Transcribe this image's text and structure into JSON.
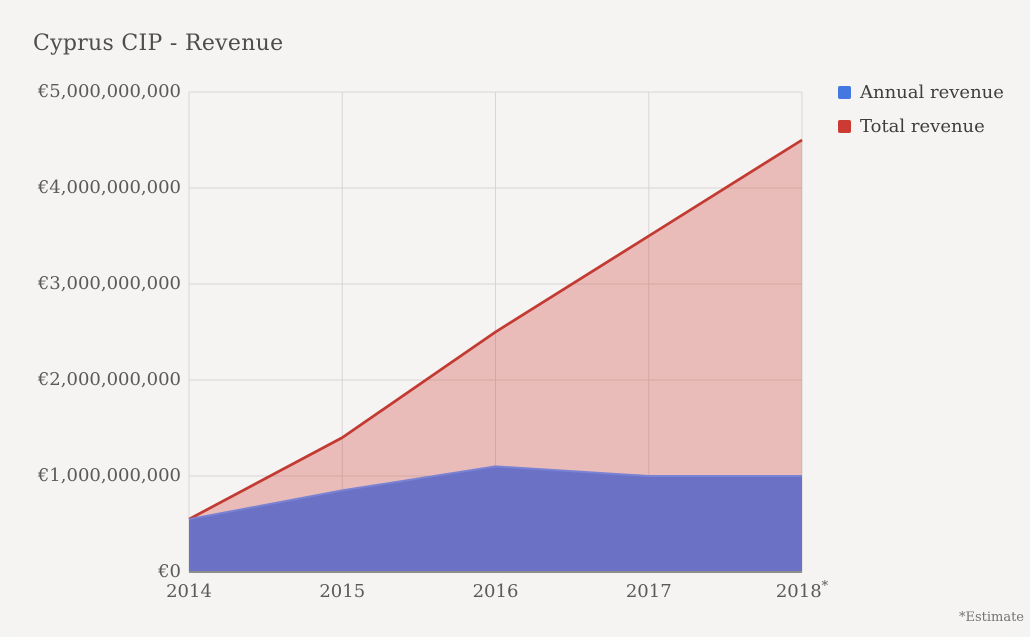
{
  "page": {
    "title": "Cyprus CIP - Revenue",
    "footnote": "*Estimate"
  },
  "legend": {
    "items": [
      {
        "label": "Annual revenue",
        "color": "#4577e0"
      },
      {
        "label": "Total revenue",
        "color": "#cc3b33"
      }
    ]
  },
  "chart_data": {
    "type": "area",
    "title": "Cyprus CIP - Revenue",
    "categories": [
      "2014",
      "2015",
      "2016",
      "2017",
      "2018*"
    ],
    "series": [
      {
        "name": "Annual revenue",
        "values": [
          550000000,
          850000000,
          1100000000,
          1000000000,
          1000000000
        ],
        "fill_color": "#6b71c4",
        "fill_opacity": 1,
        "line_color": "#7a82d4",
        "line_width": 2
      },
      {
        "name": "Total revenue",
        "values": [
          550000000,
          1400000000,
          2500000000,
          3500000000,
          4500000000
        ],
        "fill_color": "#cd3d35",
        "fill_opacity": 0.3,
        "line_color": "#c23a31",
        "line_width": 2.75
      }
    ],
    "ylim": [
      0,
      5000000000
    ],
    "y_ticks": [
      {
        "value": 0,
        "label": "€0"
      },
      {
        "value": 1000000000,
        "label": "€1,000,000,000"
      },
      {
        "value": 2000000000,
        "label": "€2,000,000,000"
      },
      {
        "value": 3000000000,
        "label": "€3,000,000,000"
      },
      {
        "value": 4000000000,
        "label": "€4,000,000,000"
      },
      {
        "value": 5000000000,
        "label": "€5,000,000,000"
      }
    ],
    "grid": true,
    "grid_color": "#d8d6d4",
    "axis_color": "#908e8c",
    "legend_position": "top-right",
    "footnote": "*Estimate",
    "xlabel": "",
    "ylabel": ""
  }
}
